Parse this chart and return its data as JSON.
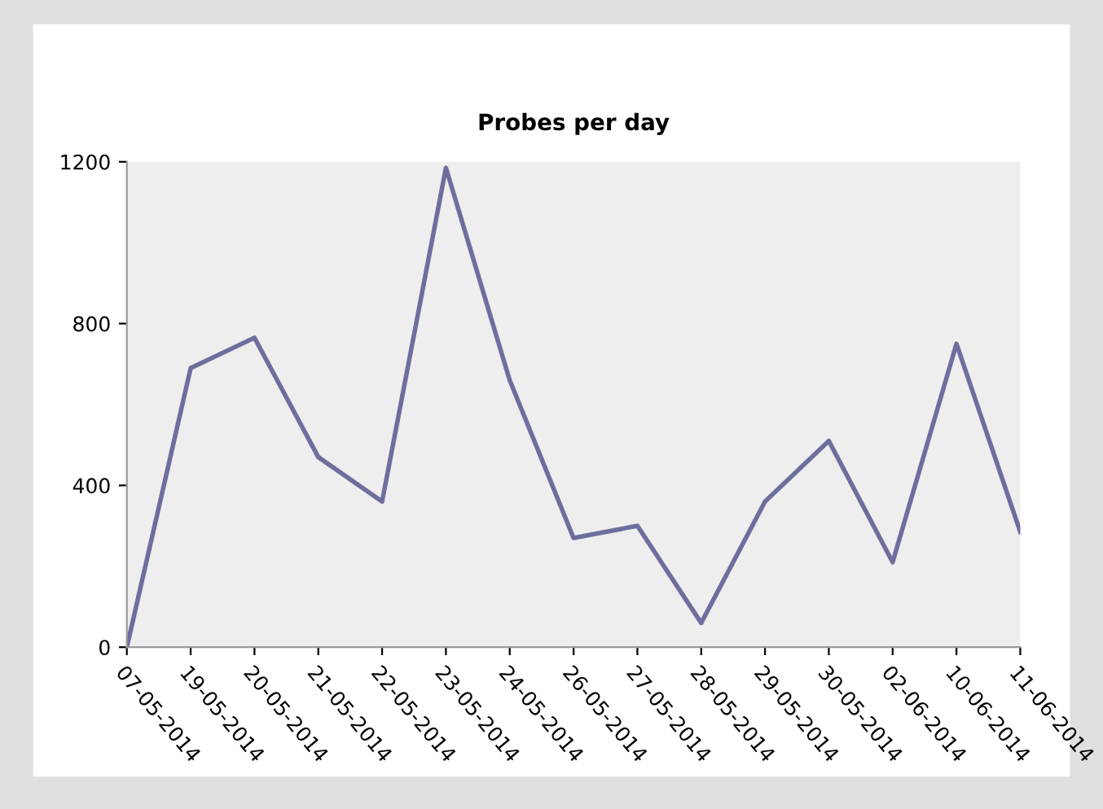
{
  "chart_data": {
    "type": "line",
    "title": "Probes per day",
    "categories": [
      "07-05-2014",
      "19-05-2014",
      "20-05-2014",
      "21-05-2014",
      "22-05-2014",
      "23-05-2014",
      "24-05-2014",
      "26-05-2014",
      "27-05-2014",
      "28-05-2014",
      "29-05-2014",
      "30-05-2014",
      "02-06-2014",
      "10-06-2014",
      "11-06-2014"
    ],
    "series": [
      {
        "color": "#6e6e9e",
        "values": [
          0,
          690,
          765,
          470,
          360,
          1185,
          660,
          270,
          300,
          60,
          360,
          510,
          210,
          750,
          285
        ]
      }
    ],
    "ylim": [
      0,
      1200
    ],
    "yticks": [
      0,
      400,
      800,
      1200
    ],
    "grid": false,
    "legend": false,
    "marker": "none",
    "line_style": "solid"
  }
}
